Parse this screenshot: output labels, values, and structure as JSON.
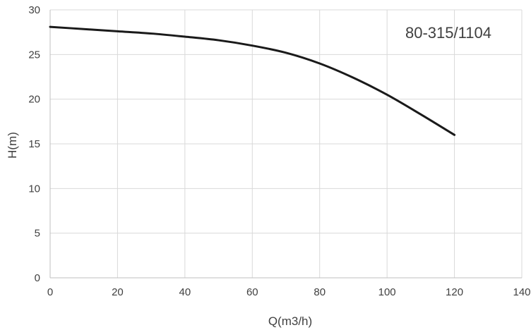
{
  "chart_data": {
    "type": "line",
    "title": "",
    "xlabel": "Q(m3/h)",
    "ylabel": "H(m)",
    "xlim": [
      0,
      140
    ],
    "ylim": [
      0,
      30
    ],
    "x_ticks": [
      0,
      20,
      40,
      60,
      80,
      100,
      120,
      140
    ],
    "y_ticks": [
      0,
      5,
      10,
      15,
      20,
      25,
      30
    ],
    "grid": true,
    "legend": "none",
    "annotations": [
      {
        "text": "80-315/1104"
      }
    ],
    "series": [
      {
        "x": [
          0,
          10,
          20,
          30,
          40,
          50,
          60,
          70,
          80,
          90,
          100,
          110,
          120
        ],
        "y": [
          28.1,
          27.85,
          27.6,
          27.35,
          27.0,
          26.6,
          26.0,
          25.2,
          24.0,
          22.4,
          20.5,
          18.3,
          16.0
        ]
      }
    ],
    "colors": {
      "line": "#1a1a1a",
      "grid": "#d9d9d9",
      "axis": "#bfbfbf",
      "text": "#404040"
    }
  }
}
